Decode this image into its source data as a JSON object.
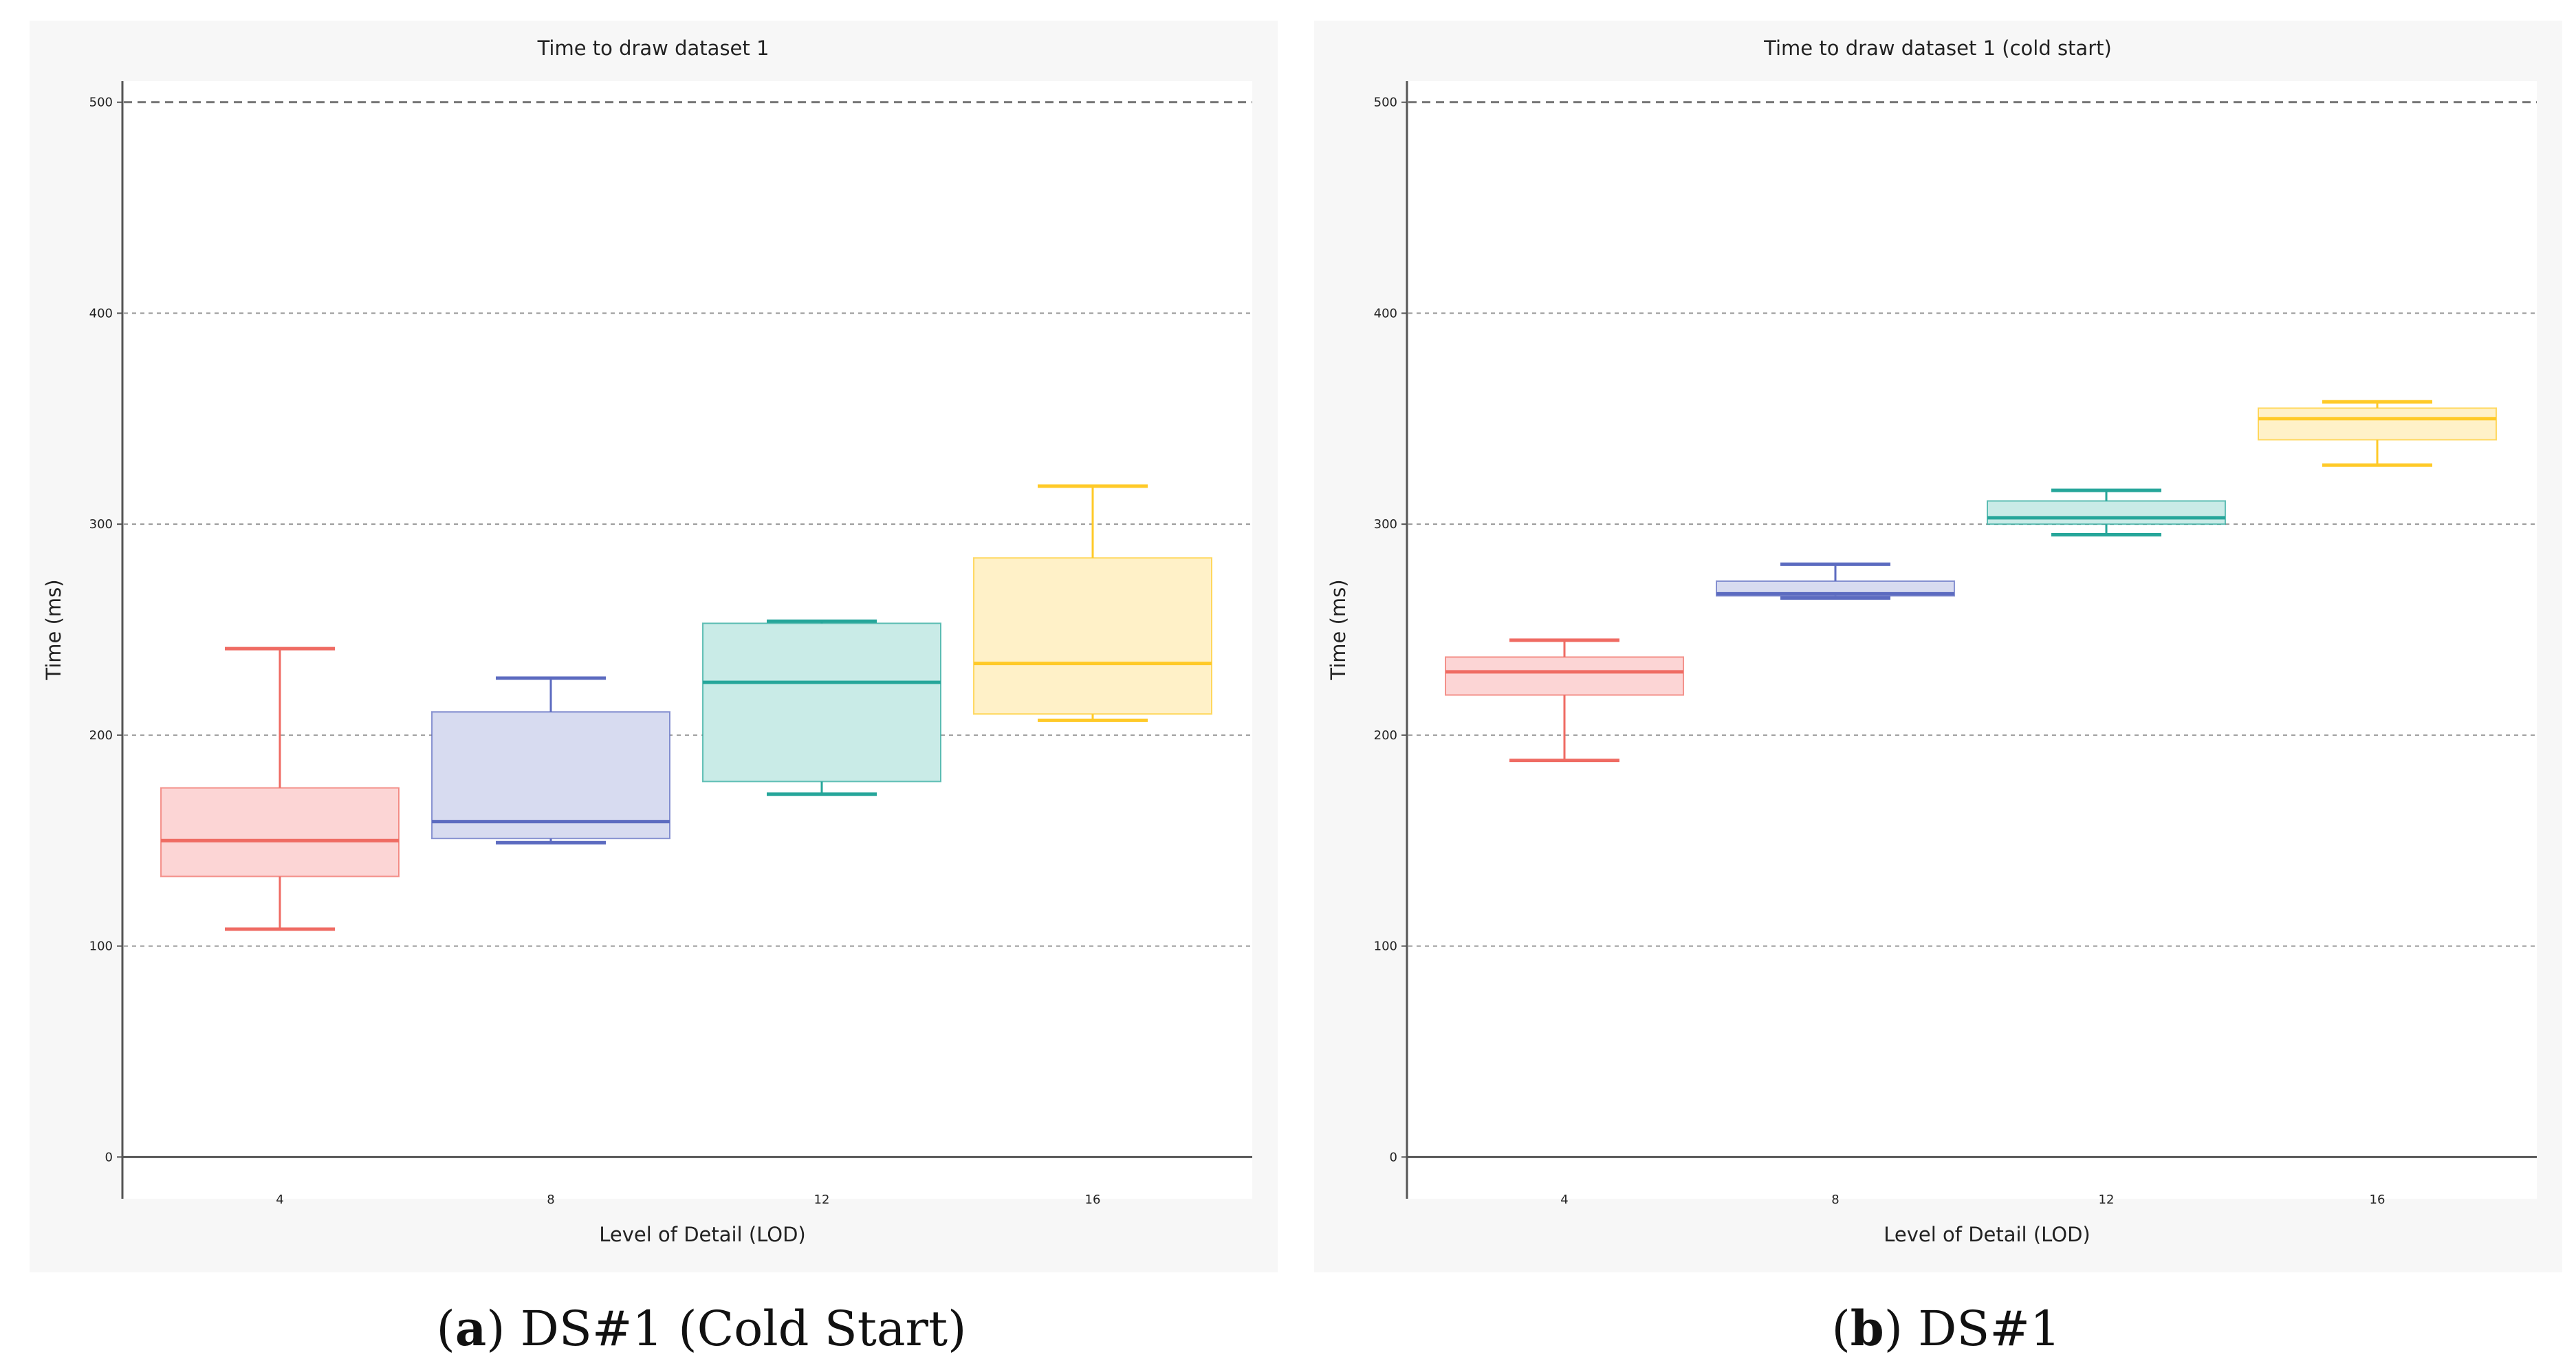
{
  "chart_data": [
    {
      "type": "box",
      "title": "Time to draw dataset 1",
      "xlabel": "Level of Detail (LOD)",
      "ylabel": "Time (ms)",
      "categories": [
        "4",
        "8",
        "12",
        "16"
      ],
      "ylim": [
        -10,
        510
      ],
      "yticks": [
        0,
        100,
        200,
        300,
        400,
        500
      ],
      "grid_y": true,
      "reference_line": 500,
      "colors": [
        "#ef6b63",
        "#5c6bc0",
        "#26a69a",
        "#ffca28"
      ],
      "fills": [
        "#fcd5d5",
        "#d7dbf0",
        "#c9ebe7",
        "#fff1c8"
      ],
      "boxes": [
        {
          "min": 108,
          "q1": 133,
          "median": 150,
          "q3": 175,
          "max": 241
        },
        {
          "min": 149,
          "q1": 151,
          "median": 159,
          "q3": 211,
          "max": 227
        },
        {
          "min": 172,
          "q1": 178,
          "median": 225,
          "q3": 253,
          "max": 254
        },
        {
          "min": 207,
          "q1": 210,
          "median": 234,
          "q3": 284,
          "max": 318
        }
      ]
    },
    {
      "type": "box",
      "title": "Time to draw dataset 1 (cold start)",
      "xlabel": "Level of Detail (LOD)",
      "ylabel": "Time (ms)",
      "categories": [
        "4",
        "8",
        "12",
        "16"
      ],
      "ylim": [
        -10,
        510
      ],
      "yticks": [
        0,
        100,
        200,
        300,
        400,
        500
      ],
      "grid_y": true,
      "reference_line": 500,
      "colors": [
        "#ef6b63",
        "#5c6bc0",
        "#26a69a",
        "#ffca28"
      ],
      "fills": [
        "#fcd5d5",
        "#d7dbf0",
        "#c9ebe7",
        "#fff1c8"
      ],
      "boxes": [
        {
          "min": 188,
          "q1": 219,
          "median": 230,
          "q3": 237,
          "max": 245
        },
        {
          "min": 265,
          "q1": 266,
          "median": 267,
          "q3": 273,
          "max": 281
        },
        {
          "min": 295,
          "q1": 300,
          "median": 303,
          "q3": 311,
          "max": 316
        },
        {
          "min": 328,
          "q1": 340,
          "median": 350,
          "q3": 355,
          "max": 358
        }
      ]
    }
  ],
  "captions": [
    {
      "letter": "a",
      "text": ") DS#1 (Cold Start)"
    },
    {
      "letter": "b",
      "text": ") DS#1"
    }
  ]
}
